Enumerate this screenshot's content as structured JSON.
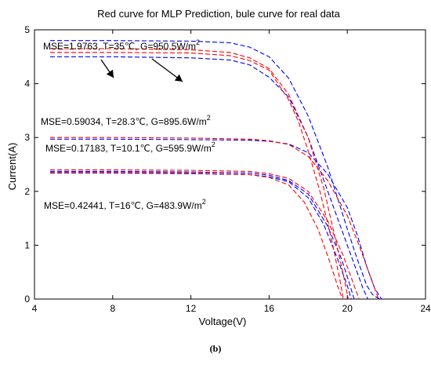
{
  "chart_data": {
    "type": "line",
    "title": "Red curve for MLP Prediction, bule curve for real data",
    "xlabel": "Voltage(V)",
    "ylabel": "Current(A)",
    "xlim": [
      4,
      24
    ],
    "ylim": [
      0,
      5
    ],
    "xticks": [
      4,
      8,
      12,
      16,
      20,
      24
    ],
    "yticks": [
      0,
      1,
      2,
      3,
      4,
      5
    ],
    "grid": false,
    "colors": {
      "mlp": "#ff0000",
      "real": "#0000ff"
    },
    "series": [
      {
        "kind": "real",
        "color": "#0000ff",
        "x": [
          4.8,
          8,
          12,
          14,
          15,
          16,
          17,
          18,
          19,
          20,
          20.5,
          21,
          21.3,
          21.65
        ],
        "y": [
          4.8,
          4.8,
          4.79,
          4.76,
          4.68,
          4.5,
          4.1,
          3.4,
          2.45,
          1.3,
          0.75,
          0.25,
          0.08,
          0
        ]
      },
      {
        "kind": "real",
        "color": "#0000ff",
        "x": [
          4.8,
          8,
          12,
          14,
          15,
          16,
          17,
          18,
          19,
          20,
          20.5,
          20.8,
          21.05
        ],
        "y": [
          4.5,
          4.5,
          4.48,
          4.44,
          4.35,
          4.12,
          3.75,
          3.0,
          2.0,
          1.0,
          0.5,
          0.2,
          0
        ]
      },
      {
        "kind": "real",
        "color": "#0000ff",
        "x": [
          4.8,
          8,
          12,
          15,
          16,
          17,
          18,
          19,
          20,
          20.5,
          21,
          21.4,
          21.75
        ],
        "y": [
          2.97,
          2.97,
          2.96,
          2.95,
          2.93,
          2.88,
          2.72,
          2.32,
          1.7,
          1.2,
          0.6,
          0.2,
          0
        ]
      },
      {
        "kind": "real",
        "color": "#0000ff",
        "x": [
          4.8,
          8,
          12,
          15,
          16,
          17,
          18,
          18.8,
          19.5,
          20,
          20.2
        ],
        "y": [
          2.34,
          2.34,
          2.33,
          2.31,
          2.27,
          2.18,
          1.88,
          1.38,
          0.75,
          0.25,
          0
        ]
      },
      {
        "kind": "real",
        "color": "#0000ff",
        "x": [
          4.8,
          8,
          12,
          15,
          16,
          17,
          18,
          19,
          19.7,
          20.1,
          20.35
        ],
        "y": [
          2.37,
          2.37,
          2.36,
          2.34,
          2.3,
          2.2,
          1.95,
          1.35,
          0.75,
          0.3,
          0
        ]
      },
      {
        "kind": "mlp",
        "color": "#ff0000",
        "x": [
          4.8,
          8,
          12,
          14,
          15,
          16,
          17,
          17.5,
          18,
          18.6,
          19.2,
          19.6,
          19.8
        ],
        "y": [
          4.58,
          4.58,
          4.57,
          4.52,
          4.43,
          4.25,
          3.7,
          3.3,
          2.75,
          2.0,
          1.1,
          0.4,
          0
        ]
      },
      {
        "kind": "mlp",
        "color": "#ff0000",
        "x": [
          4.8,
          8,
          12,
          14,
          15,
          16,
          17,
          18,
          18.8,
          19.4,
          19.8,
          20.05
        ],
        "y": [
          4.65,
          4.65,
          4.63,
          4.58,
          4.48,
          4.28,
          3.8,
          3.0,
          2.05,
          1.1,
          0.45,
          0
        ]
      },
      {
        "kind": "mlp",
        "color": "#ff0000",
        "x": [
          4.8,
          8,
          12,
          15,
          16,
          17,
          18,
          19,
          20,
          20.6,
          21.2,
          21.6
        ],
        "y": [
          3.0,
          3.0,
          2.99,
          2.97,
          2.94,
          2.87,
          2.65,
          2.2,
          1.55,
          1.0,
          0.4,
          0
        ]
      },
      {
        "kind": "mlp",
        "color": "#ff0000",
        "x": [
          4.8,
          8,
          12,
          15,
          16,
          17,
          18,
          19,
          19.8,
          20.3,
          20.6
        ],
        "y": [
          2.4,
          2.4,
          2.39,
          2.37,
          2.33,
          2.24,
          2.0,
          1.45,
          0.8,
          0.3,
          0
        ]
      },
      {
        "kind": "mlp",
        "color": "#ff0000",
        "x": [
          4.8,
          8,
          12,
          15,
          16,
          17,
          17.8,
          18.5,
          19.1,
          19.5,
          19.75
        ],
        "y": [
          2.35,
          2.35,
          2.34,
          2.31,
          2.26,
          2.12,
          1.8,
          1.3,
          0.7,
          0.25,
          0
        ]
      }
    ],
    "annotations": [
      {
        "text": "MSE=1.9763, T=35",
        "sup": "",
        "tail": "℃, G=950.5W/m",
        "sup2": "2"
      },
      {
        "text": "MSE=0.59034, T=28.3",
        "tail": "℃, G=895.6W/m",
        "sup2": "2"
      },
      {
        "text": "MSE=0.17183, T=10.1",
        "tail": "℃, G=595.9W/m",
        "sup2": "2"
      },
      {
        "text": "MSE=0.42441, T=16",
        "tail": "℃, G=483.9W/m",
        "sup2": "2"
      }
    ]
  },
  "caption": "(b)"
}
